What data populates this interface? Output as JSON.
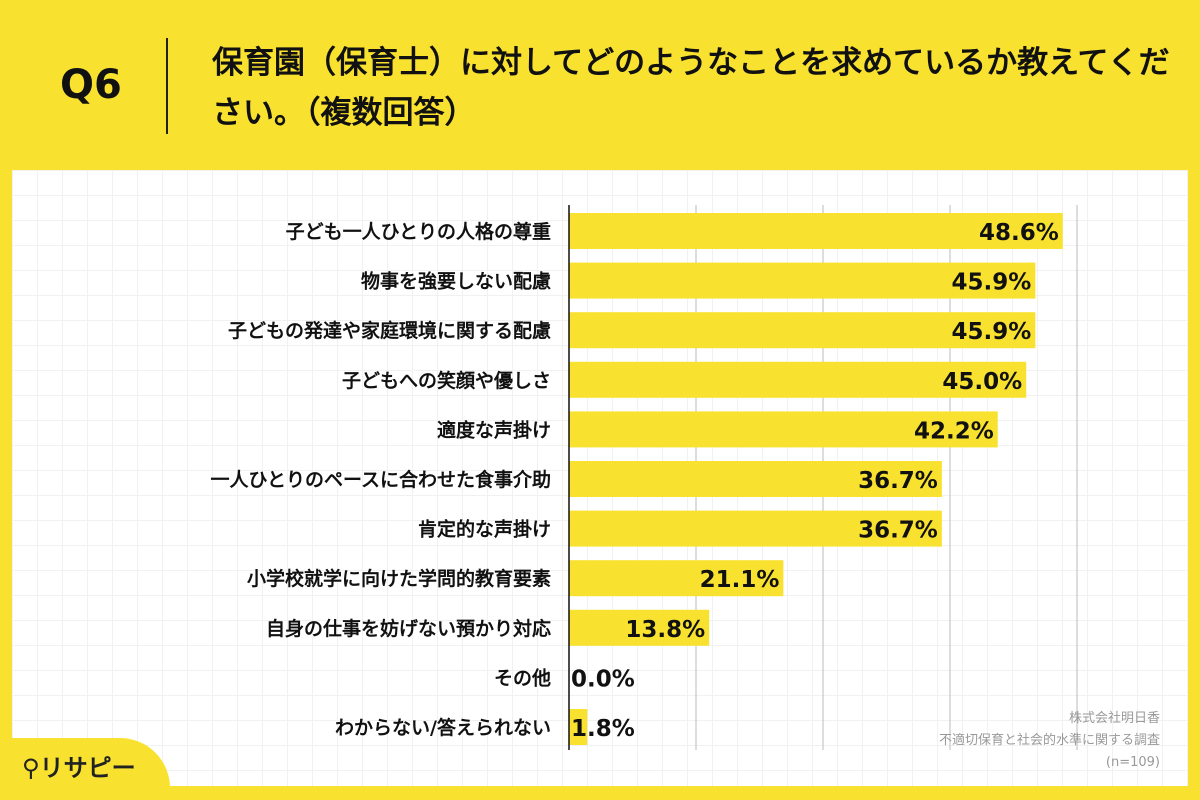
{
  "header": {
    "question": "Q6",
    "title": "保育園（保育士）に対してどのようなことを求めているか教えてください。（複数回答）"
  },
  "source": {
    "company": "株式会社明日香",
    "survey": "不適切保育と社会的水準に関する調査",
    "n": "(n=109)"
  },
  "logo": {
    "text": "リサピー"
  },
  "colors": {
    "bar": "#f9e22f",
    "background": "#f9e22f"
  },
  "chart_data": {
    "type": "bar",
    "orientation": "horizontal",
    "xlim": [
      0,
      50
    ],
    "grid": true,
    "categories": [
      "子ども一人ひとりの人格の尊重",
      "物事を強要しない配慮",
      "子どもの発達や家庭環境に関する配慮",
      "子どもへの笑顔や優しさ",
      "適度な声掛け",
      "一人ひとりのペースに合わせた食事介助",
      "肯定的な声掛け",
      "小学校就学に向けた学問的教育要素",
      "自身の仕事を妨げない預かり対応",
      "その他",
      "わからない/答えられない"
    ],
    "values": [
      48.6,
      45.9,
      45.9,
      45.0,
      42.2,
      36.7,
      36.7,
      21.1,
      13.8,
      0.0,
      1.8
    ],
    "labels": [
      "48.6%",
      "45.9%",
      "45.9%",
      "45.0%",
      "42.2%",
      "36.7%",
      "36.7%",
      "21.1%",
      "13.8%",
      "0.0%",
      "1.8%"
    ]
  }
}
